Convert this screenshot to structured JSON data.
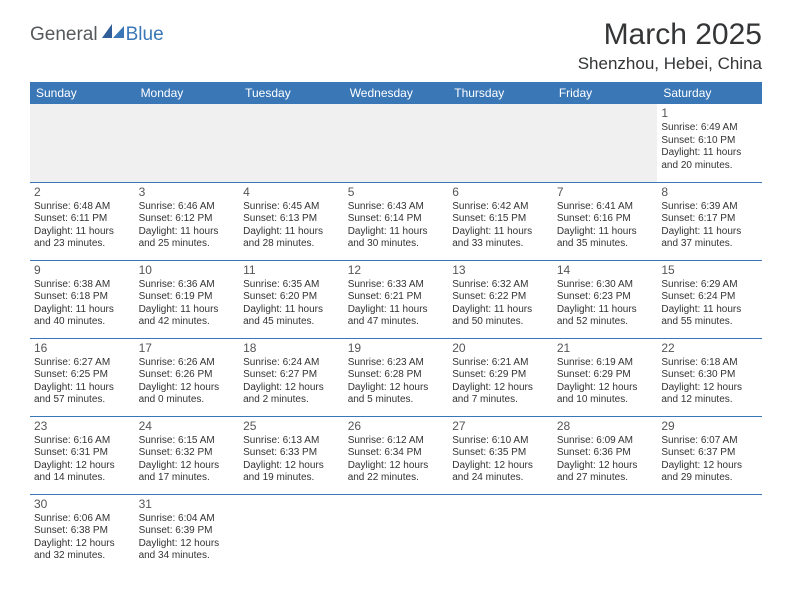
{
  "logo": {
    "part1": "General",
    "part2": "Blue"
  },
  "title": "March 2025",
  "location": "Shenzhou, Hebei, China",
  "colors": {
    "header_bg": "#3a77b7",
    "header_text": "#ffffff",
    "logo_gray": "#56595c",
    "logo_blue": "#3a77b7",
    "body_text": "#333333",
    "empty_bg": "#f0f0f0",
    "border": "#3a77b7"
  },
  "weekdays": [
    "Sunday",
    "Monday",
    "Tuesday",
    "Wednesday",
    "Thursday",
    "Friday",
    "Saturday"
  ],
  "weeks": [
    [
      null,
      null,
      null,
      null,
      null,
      null,
      {
        "n": "1",
        "sr": "Sunrise: 6:49 AM",
        "ss": "Sunset: 6:10 PM",
        "d1": "Daylight: 11 hours",
        "d2": "and 20 minutes."
      }
    ],
    [
      {
        "n": "2",
        "sr": "Sunrise: 6:48 AM",
        "ss": "Sunset: 6:11 PM",
        "d1": "Daylight: 11 hours",
        "d2": "and 23 minutes."
      },
      {
        "n": "3",
        "sr": "Sunrise: 6:46 AM",
        "ss": "Sunset: 6:12 PM",
        "d1": "Daylight: 11 hours",
        "d2": "and 25 minutes."
      },
      {
        "n": "4",
        "sr": "Sunrise: 6:45 AM",
        "ss": "Sunset: 6:13 PM",
        "d1": "Daylight: 11 hours",
        "d2": "and 28 minutes."
      },
      {
        "n": "5",
        "sr": "Sunrise: 6:43 AM",
        "ss": "Sunset: 6:14 PM",
        "d1": "Daylight: 11 hours",
        "d2": "and 30 minutes."
      },
      {
        "n": "6",
        "sr": "Sunrise: 6:42 AM",
        "ss": "Sunset: 6:15 PM",
        "d1": "Daylight: 11 hours",
        "d2": "and 33 minutes."
      },
      {
        "n": "7",
        "sr": "Sunrise: 6:41 AM",
        "ss": "Sunset: 6:16 PM",
        "d1": "Daylight: 11 hours",
        "d2": "and 35 minutes."
      },
      {
        "n": "8",
        "sr": "Sunrise: 6:39 AM",
        "ss": "Sunset: 6:17 PM",
        "d1": "Daylight: 11 hours",
        "d2": "and 37 minutes."
      }
    ],
    [
      {
        "n": "9",
        "sr": "Sunrise: 6:38 AM",
        "ss": "Sunset: 6:18 PM",
        "d1": "Daylight: 11 hours",
        "d2": "and 40 minutes."
      },
      {
        "n": "10",
        "sr": "Sunrise: 6:36 AM",
        "ss": "Sunset: 6:19 PM",
        "d1": "Daylight: 11 hours",
        "d2": "and 42 minutes."
      },
      {
        "n": "11",
        "sr": "Sunrise: 6:35 AM",
        "ss": "Sunset: 6:20 PM",
        "d1": "Daylight: 11 hours",
        "d2": "and 45 minutes."
      },
      {
        "n": "12",
        "sr": "Sunrise: 6:33 AM",
        "ss": "Sunset: 6:21 PM",
        "d1": "Daylight: 11 hours",
        "d2": "and 47 minutes."
      },
      {
        "n": "13",
        "sr": "Sunrise: 6:32 AM",
        "ss": "Sunset: 6:22 PM",
        "d1": "Daylight: 11 hours",
        "d2": "and 50 minutes."
      },
      {
        "n": "14",
        "sr": "Sunrise: 6:30 AM",
        "ss": "Sunset: 6:23 PM",
        "d1": "Daylight: 11 hours",
        "d2": "and 52 minutes."
      },
      {
        "n": "15",
        "sr": "Sunrise: 6:29 AM",
        "ss": "Sunset: 6:24 PM",
        "d1": "Daylight: 11 hours",
        "d2": "and 55 minutes."
      }
    ],
    [
      {
        "n": "16",
        "sr": "Sunrise: 6:27 AM",
        "ss": "Sunset: 6:25 PM",
        "d1": "Daylight: 11 hours",
        "d2": "and 57 minutes."
      },
      {
        "n": "17",
        "sr": "Sunrise: 6:26 AM",
        "ss": "Sunset: 6:26 PM",
        "d1": "Daylight: 12 hours",
        "d2": "and 0 minutes."
      },
      {
        "n": "18",
        "sr": "Sunrise: 6:24 AM",
        "ss": "Sunset: 6:27 PM",
        "d1": "Daylight: 12 hours",
        "d2": "and 2 minutes."
      },
      {
        "n": "19",
        "sr": "Sunrise: 6:23 AM",
        "ss": "Sunset: 6:28 PM",
        "d1": "Daylight: 12 hours",
        "d2": "and 5 minutes."
      },
      {
        "n": "20",
        "sr": "Sunrise: 6:21 AM",
        "ss": "Sunset: 6:29 PM",
        "d1": "Daylight: 12 hours",
        "d2": "and 7 minutes."
      },
      {
        "n": "21",
        "sr": "Sunrise: 6:19 AM",
        "ss": "Sunset: 6:29 PM",
        "d1": "Daylight: 12 hours",
        "d2": "and 10 minutes."
      },
      {
        "n": "22",
        "sr": "Sunrise: 6:18 AM",
        "ss": "Sunset: 6:30 PM",
        "d1": "Daylight: 12 hours",
        "d2": "and 12 minutes."
      }
    ],
    [
      {
        "n": "23",
        "sr": "Sunrise: 6:16 AM",
        "ss": "Sunset: 6:31 PM",
        "d1": "Daylight: 12 hours",
        "d2": "and 14 minutes."
      },
      {
        "n": "24",
        "sr": "Sunrise: 6:15 AM",
        "ss": "Sunset: 6:32 PM",
        "d1": "Daylight: 12 hours",
        "d2": "and 17 minutes."
      },
      {
        "n": "25",
        "sr": "Sunrise: 6:13 AM",
        "ss": "Sunset: 6:33 PM",
        "d1": "Daylight: 12 hours",
        "d2": "and 19 minutes."
      },
      {
        "n": "26",
        "sr": "Sunrise: 6:12 AM",
        "ss": "Sunset: 6:34 PM",
        "d1": "Daylight: 12 hours",
        "d2": "and 22 minutes."
      },
      {
        "n": "27",
        "sr": "Sunrise: 6:10 AM",
        "ss": "Sunset: 6:35 PM",
        "d1": "Daylight: 12 hours",
        "d2": "and 24 minutes."
      },
      {
        "n": "28",
        "sr": "Sunrise: 6:09 AM",
        "ss": "Sunset: 6:36 PM",
        "d1": "Daylight: 12 hours",
        "d2": "and 27 minutes."
      },
      {
        "n": "29",
        "sr": "Sunrise: 6:07 AM",
        "ss": "Sunset: 6:37 PM",
        "d1": "Daylight: 12 hours",
        "d2": "and 29 minutes."
      }
    ],
    [
      {
        "n": "30",
        "sr": "Sunrise: 6:06 AM",
        "ss": "Sunset: 6:38 PM",
        "d1": "Daylight: 12 hours",
        "d2": "and 32 minutes."
      },
      {
        "n": "31",
        "sr": "Sunrise: 6:04 AM",
        "ss": "Sunset: 6:39 PM",
        "d1": "Daylight: 12 hours",
        "d2": "and 34 minutes."
      },
      null,
      null,
      null,
      null,
      null
    ]
  ]
}
